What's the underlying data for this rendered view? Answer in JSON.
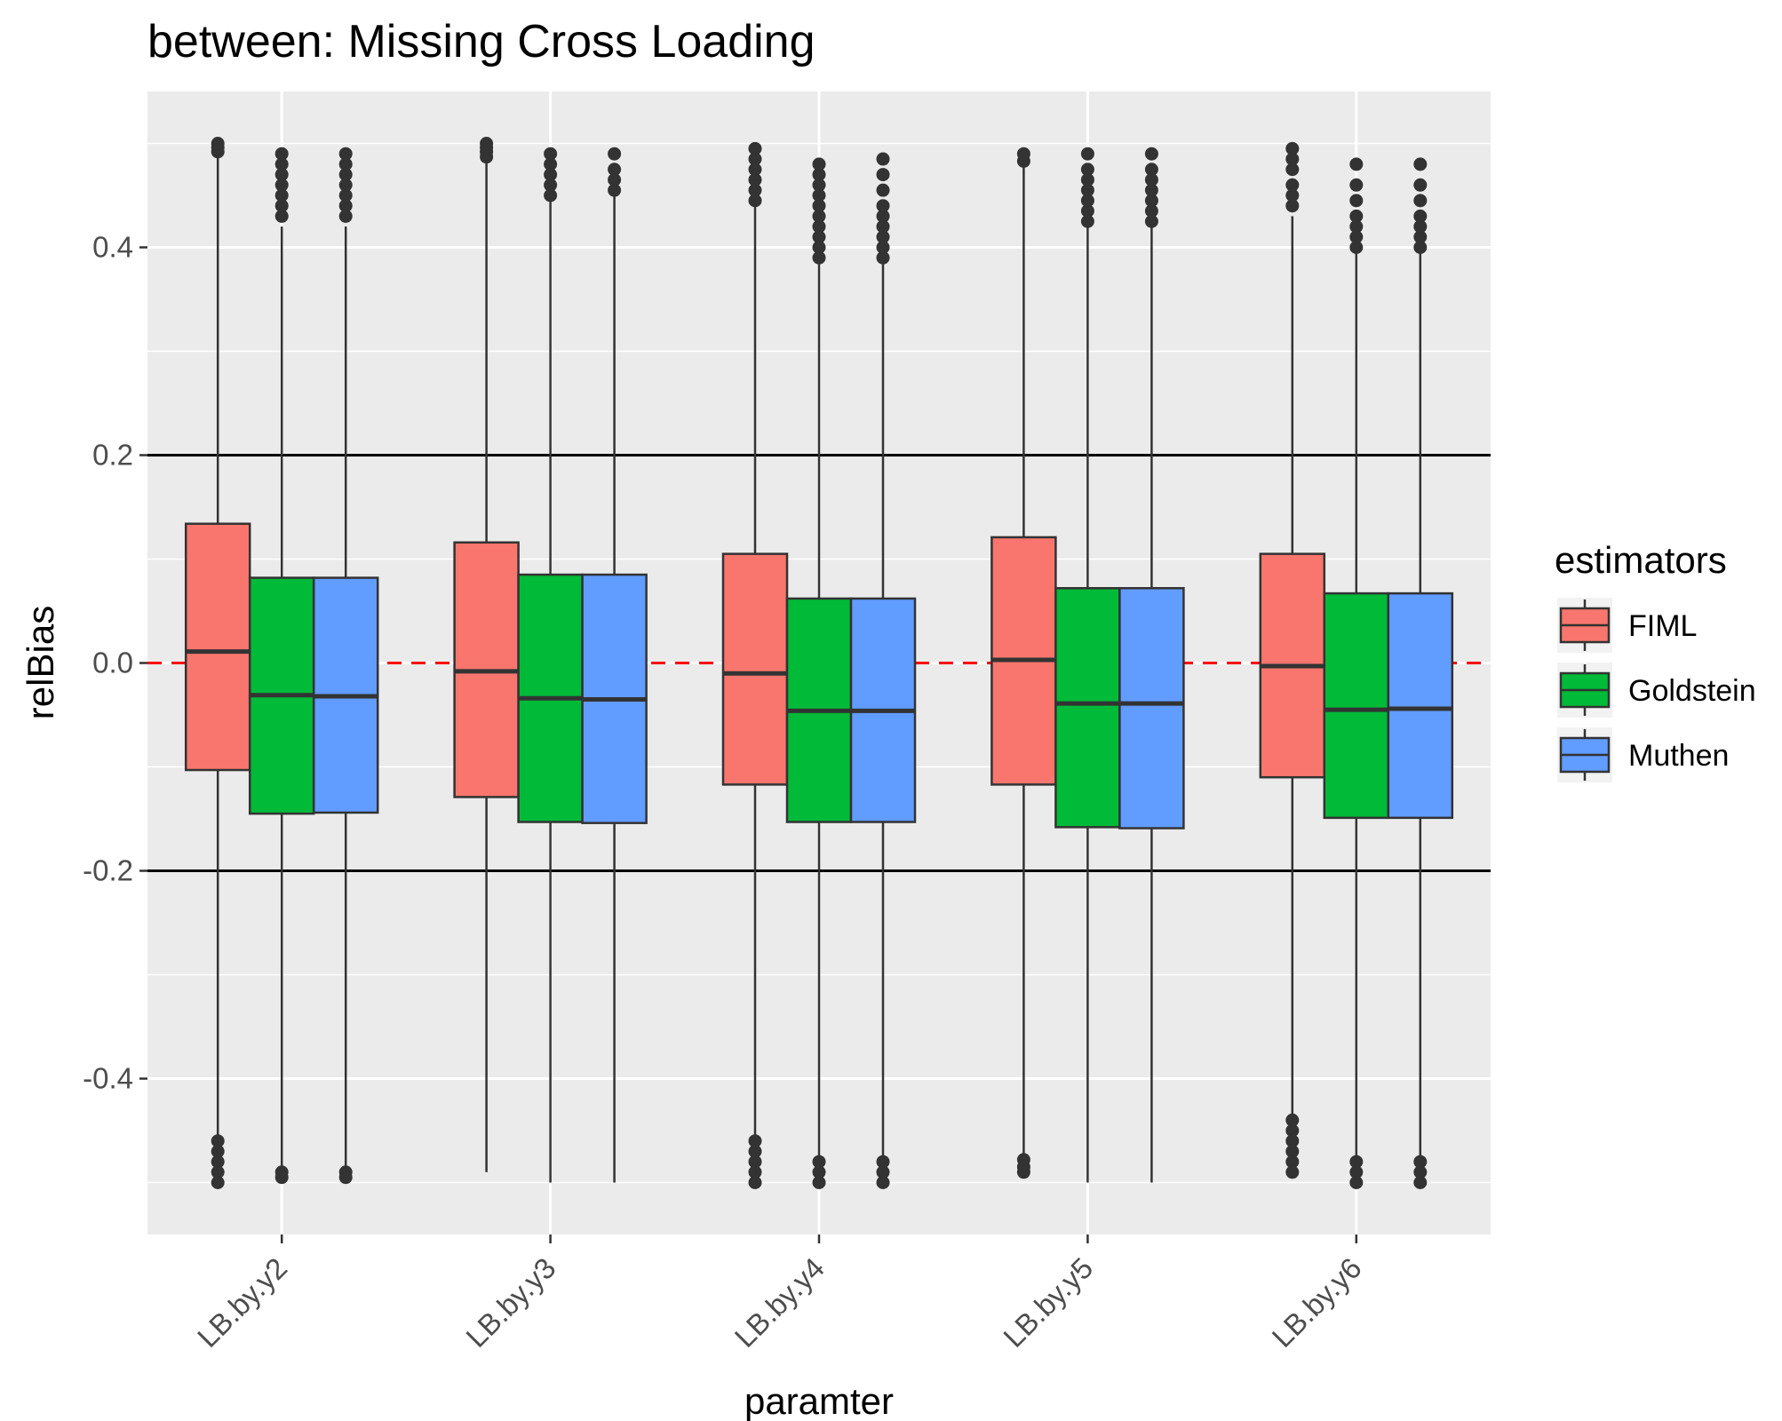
{
  "chart_data": {
    "type": "boxplot",
    "title": "between: Missing Cross Loading",
    "xlabel": "paramter",
    "ylabel": "relBias",
    "ylim": [
      -0.55,
      0.55
    ],
    "yticks": [
      -0.4,
      -0.2,
      0.0,
      0.2,
      0.4
    ],
    "ytick_labels": [
      "-0.4",
      "-0.2",
      "0.0",
      "0.2",
      "0.4"
    ],
    "categories": [
      "LB.by.y2",
      "LB.by.y3",
      "LB.by.y4",
      "LB.by.y5",
      "LB.by.y6"
    ],
    "reference_lines": [
      {
        "y": 0.2,
        "style": "solid",
        "color": "#000000"
      },
      {
        "y": -0.2,
        "style": "solid",
        "color": "#000000"
      },
      {
        "y": 0.0,
        "style": "dashed",
        "color": "#ff0000"
      }
    ],
    "legend": {
      "title": "estimators",
      "placement": "right"
    },
    "grid": true,
    "series": [
      {
        "name": "FIML",
        "color": "#f8766d",
        "boxes": [
          {
            "whisker_low": -0.46,
            "q1": -0.103,
            "median": 0.011,
            "q3": 0.134,
            "whisker_high": 0.49,
            "outliers_low": [
              -0.46,
              -0.47,
              -0.48,
              -0.49,
              -0.5
            ],
            "outliers_high": [
              0.492,
              0.496,
              0.5
            ]
          },
          {
            "whisker_low": -0.49,
            "q1": -0.129,
            "median": -0.008,
            "q3": 0.116,
            "whisker_high": 0.485,
            "outliers_low": [],
            "outliers_high": [
              0.487,
              0.492,
              0.496,
              0.5
            ]
          },
          {
            "whisker_low": -0.455,
            "q1": -0.117,
            "median": -0.01,
            "q3": 0.105,
            "whisker_high": 0.44,
            "outliers_low": [
              -0.46,
              -0.47,
              -0.48,
              -0.49,
              -0.5
            ],
            "outliers_high": [
              0.445,
              0.455,
              0.465,
              0.475,
              0.485,
              0.495
            ]
          },
          {
            "whisker_low": -0.475,
            "q1": -0.117,
            "median": 0.003,
            "q3": 0.121,
            "whisker_high": 0.48,
            "outliers_low": [
              -0.478,
              -0.485,
              -0.49
            ],
            "outliers_high": [
              0.483,
              0.49
            ]
          },
          {
            "whisker_low": -0.44,
            "q1": -0.11,
            "median": -0.003,
            "q3": 0.105,
            "whisker_high": 0.43,
            "outliers_low": [
              -0.44,
              -0.45,
              -0.46,
              -0.47,
              -0.48,
              -0.49
            ],
            "outliers_high": [
              0.44,
              0.45,
              0.46,
              0.475,
              0.485,
              0.495
            ]
          }
        ]
      },
      {
        "name": "Goldstein",
        "color": "#00ba38",
        "boxes": [
          {
            "whisker_low": -0.487,
            "q1": -0.145,
            "median": -0.031,
            "q3": 0.082,
            "whisker_high": 0.42,
            "outliers_low": [
              -0.49,
              -0.495
            ],
            "outliers_high": [
              0.43,
              0.44,
              0.45,
              0.46,
              0.47,
              0.48,
              0.49
            ]
          },
          {
            "whisker_low": -0.5,
            "q1": -0.153,
            "median": -0.034,
            "q3": 0.085,
            "whisker_high": 0.445,
            "outliers_low": [],
            "outliers_high": [
              0.45,
              0.46,
              0.47,
              0.48,
              0.49
            ]
          },
          {
            "whisker_low": -0.475,
            "q1": -0.153,
            "median": -0.046,
            "q3": 0.062,
            "whisker_high": 0.385,
            "outliers_low": [
              -0.48,
              -0.49,
              -0.5
            ],
            "outliers_high": [
              0.39,
              0.4,
              0.41,
              0.42,
              0.43,
              0.44,
              0.45,
              0.46,
              0.47,
              0.48
            ]
          },
          {
            "whisker_low": -0.5,
            "q1": -0.158,
            "median": -0.039,
            "q3": 0.072,
            "whisker_high": 0.42,
            "outliers_low": [],
            "outliers_high": [
              0.425,
              0.435,
              0.445,
              0.455,
              0.465,
              0.475,
              0.49
            ]
          },
          {
            "whisker_low": -0.475,
            "q1": -0.149,
            "median": -0.045,
            "q3": 0.067,
            "whisker_high": 0.395,
            "outliers_low": [
              -0.48,
              -0.49,
              -0.5
            ],
            "outliers_high": [
              0.4,
              0.41,
              0.42,
              0.43,
              0.445,
              0.46,
              0.48
            ]
          }
        ]
      },
      {
        "name": "Muthen",
        "color": "#619cff",
        "boxes": [
          {
            "whisker_low": -0.487,
            "q1": -0.144,
            "median": -0.032,
            "q3": 0.082,
            "whisker_high": 0.42,
            "outliers_low": [
              -0.49,
              -0.495
            ],
            "outliers_high": [
              0.43,
              0.44,
              0.45,
              0.46,
              0.47,
              0.48,
              0.49
            ]
          },
          {
            "whisker_low": -0.5,
            "q1": -0.154,
            "median": -0.035,
            "q3": 0.085,
            "whisker_high": 0.45,
            "outliers_low": [],
            "outliers_high": [
              0.455,
              0.465,
              0.475,
              0.49
            ]
          },
          {
            "whisker_low": -0.475,
            "q1": -0.153,
            "median": -0.046,
            "q3": 0.062,
            "whisker_high": 0.388,
            "outliers_low": [
              -0.48,
              -0.49,
              -0.5
            ],
            "outliers_high": [
              0.39,
              0.4,
              0.41,
              0.42,
              0.43,
              0.44,
              0.455,
              0.47,
              0.485
            ]
          },
          {
            "whisker_low": -0.5,
            "q1": -0.159,
            "median": -0.039,
            "q3": 0.072,
            "whisker_high": 0.42,
            "outliers_low": [],
            "outliers_high": [
              0.425,
              0.435,
              0.445,
              0.455,
              0.465,
              0.475,
              0.49
            ]
          },
          {
            "whisker_low": -0.475,
            "q1": -0.149,
            "median": -0.044,
            "q3": 0.067,
            "whisker_high": 0.395,
            "outliers_low": [
              -0.48,
              -0.49,
              -0.5
            ],
            "outliers_high": [
              0.4,
              0.41,
              0.42,
              0.43,
              0.445,
              0.46,
              0.48
            ]
          }
        ]
      }
    ]
  }
}
